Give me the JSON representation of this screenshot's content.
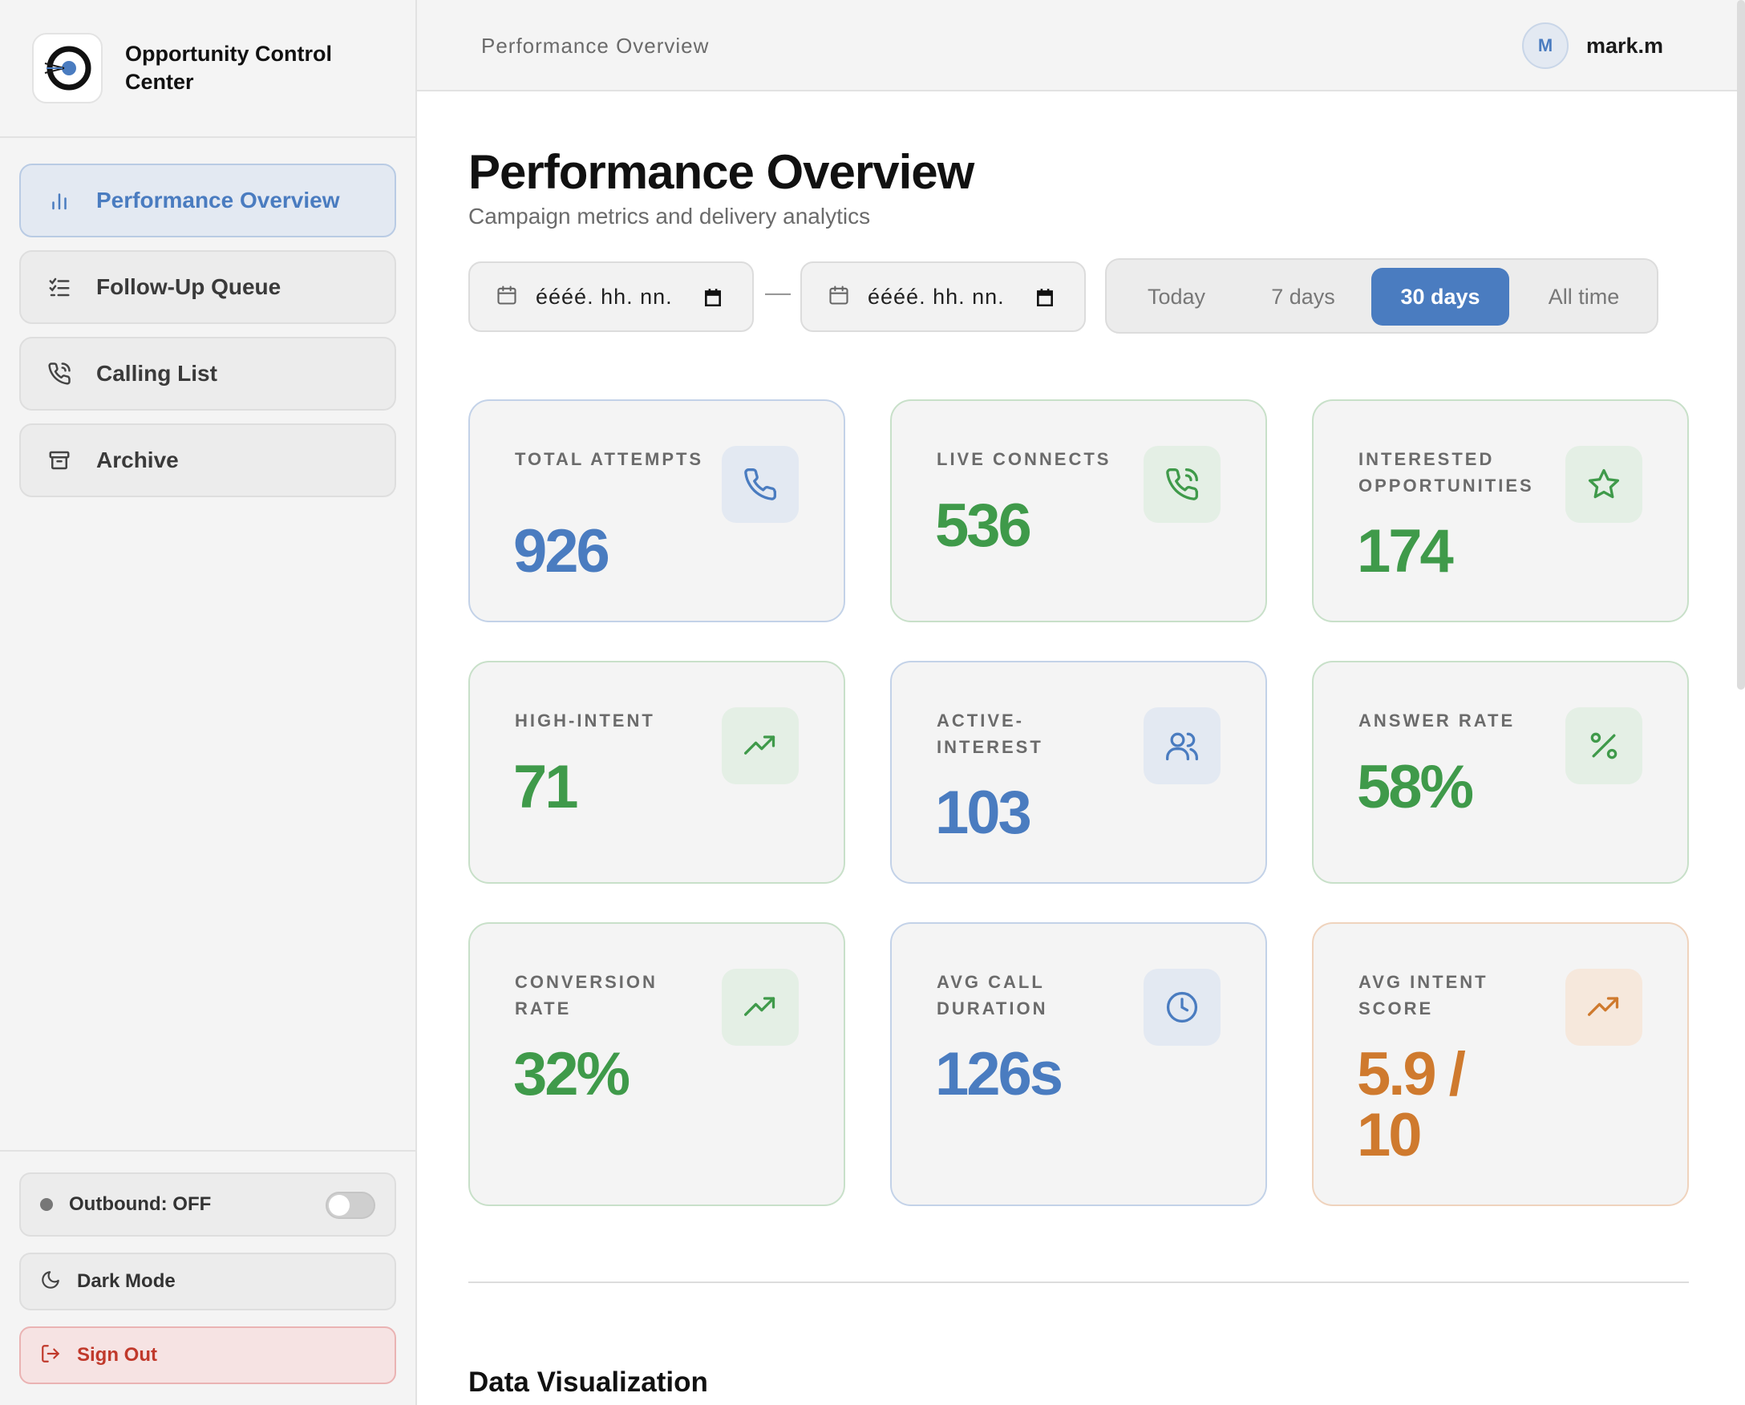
{
  "brand": {
    "name": "Opportunity Control Center"
  },
  "nav": {
    "items": [
      {
        "label": "Performance Overview",
        "icon": "bar-chart-icon",
        "active": true
      },
      {
        "label": "Follow-Up Queue",
        "icon": "checklist-icon",
        "active": false
      },
      {
        "label": "Calling List",
        "icon": "phone-call-icon",
        "active": false
      },
      {
        "label": "Archive",
        "icon": "archive-icon",
        "active": false
      }
    ]
  },
  "sidebar_bottom": {
    "outbound_label": "Outbound: OFF",
    "outbound_enabled": false,
    "dark_mode_label": "Dark Mode",
    "sign_out_label": "Sign Out"
  },
  "topbar": {
    "title": "Performance Overview",
    "avatar_initial": "M",
    "username": "mark.m"
  },
  "main": {
    "title": "Performance Overview",
    "subtitle": "Campaign metrics and delivery analytics",
    "date_from_placeholder": "éééé. hh. nn.",
    "date_to_placeholder": "éééé. hh. nn.",
    "separator": "—",
    "ranges": [
      {
        "label": "Today",
        "active": false
      },
      {
        "label": "7 days",
        "active": false
      },
      {
        "label": "30 days",
        "active": true
      },
      {
        "label": "All time",
        "active": false
      }
    ]
  },
  "metrics": [
    {
      "label": "Total Attempts",
      "value": "926",
      "tone": "blue",
      "icon": "phone-icon"
    },
    {
      "label": "Live Connects",
      "value": "536",
      "tone": "green",
      "icon": "phone-call-icon"
    },
    {
      "label": "Interested Opportunities",
      "value": "174",
      "tone": "green",
      "icon": "star-icon"
    },
    {
      "label": "High-Intent",
      "value": "71",
      "tone": "green",
      "icon": "trending-up-icon"
    },
    {
      "label": "Active-Interest",
      "value": "103",
      "tone": "blue",
      "icon": "users-icon"
    },
    {
      "label": "Answer Rate",
      "value": "58%",
      "tone": "green",
      "icon": "percent-icon"
    },
    {
      "label": "Conversion Rate",
      "value": "32%",
      "tone": "green",
      "icon": "trending-up-icon"
    },
    {
      "label": "Avg Call Duration",
      "value": "126s",
      "tone": "blue",
      "icon": "clock-icon"
    },
    {
      "label": "Avg Intent Score",
      "value": "5.9 / 10",
      "tone": "orange",
      "icon": "trending-up-icon"
    }
  ],
  "section": {
    "title": "Data Visualization"
  },
  "colors": {
    "accent_blue": "#4a7cc0",
    "accent_green": "#3f9a4a",
    "accent_orange": "#cf7a2e",
    "danger": "#c0392b"
  }
}
